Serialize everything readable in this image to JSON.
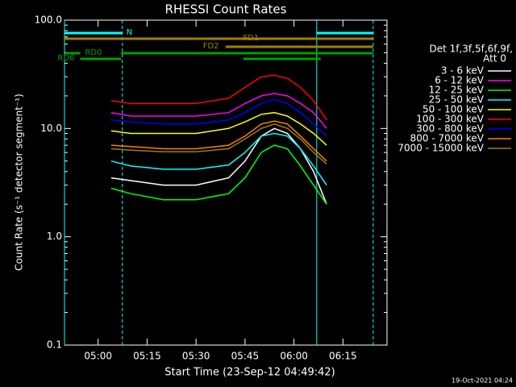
{
  "chart_data": {
    "type": "line",
    "title": "RHESSI Count Rates",
    "xlabel": "Start Time (23-Sep-12 04:49:42)",
    "ylabel": "Count Rate (s⁻¹ detector segment⁻¹)",
    "legend_title": [
      "Det 1f,3f,5f,6f,9f,",
      "Att 0"
    ],
    "footer": "19-Oct-2021 04:24",
    "log_y": true,
    "xlim": [
      "04:49:42",
      "06:28:30"
    ],
    "xticks": [
      "05:00",
      "05:15",
      "05:30",
      "05:45",
      "06:00",
      "06:15"
    ],
    "ylim": [
      0.1,
      100
    ],
    "yticks": [
      0.1,
      {
        "value": 1,
        "label": "1.0"
      },
      {
        "value": 10,
        "label": "10.0"
      },
      {
        "value": 100,
        "label": "100.0"
      }
    ],
    "x": [
      "05:04",
      "05:10",
      "05:20",
      "05:30",
      "05:40",
      "05:45",
      "05:50",
      "05:54",
      "05:58",
      "06:02",
      "06:06",
      "06:10"
    ],
    "series": [
      {
        "name": "3 - 6 keV",
        "color": "#ffffff",
        "values": [
          3.5,
          3.3,
          3.0,
          3.0,
          3.5,
          5,
          8.5,
          10,
          9,
          6.5,
          4,
          2
        ]
      },
      {
        "name": "6 - 12 keV",
        "color": "#ff00ff",
        "values": [
          14,
          13,
          13,
          13,
          14,
          17,
          20,
          21,
          20,
          17,
          14,
          10
        ]
      },
      {
        "name": "12 - 25 keV",
        "color": "#00ff00",
        "values": [
          2.8,
          2.5,
          2.2,
          2.2,
          2.5,
          3.5,
          6,
          7,
          6.5,
          4.5,
          3,
          2
        ]
      },
      {
        "name": "25 - 50 keV",
        "color": "#00ffff",
        "values": [
          5,
          4.5,
          4.2,
          4.2,
          4.6,
          6,
          8.5,
          9,
          8.5,
          6.5,
          4.5,
          3
        ]
      },
      {
        "name": "50 - 100 keV",
        "color": "#ffff00",
        "values": [
          9.5,
          9,
          9,
          9,
          10,
          11.5,
          13.5,
          14,
          13,
          11,
          9,
          7
        ]
      },
      {
        "name": "100 - 300 keV",
        "color": "#ff0000",
        "values": [
          18,
          17,
          17,
          17,
          19,
          24,
          30,
          31,
          29,
          24,
          18,
          12
        ]
      },
      {
        "name": "300 - 800 keV",
        "color": "#0000ff",
        "values": [
          12,
          11.5,
          11,
          11,
          12,
          14,
          17,
          18.5,
          17,
          14,
          11,
          8.5
        ]
      },
      {
        "name": "800 - 7000 keV",
        "color": "#ff8000",
        "values": [
          7,
          6.8,
          6.5,
          6.5,
          7,
          8.5,
          11,
          11.7,
          11,
          8.5,
          6.5,
          5
        ]
      },
      {
        "name": "7000 - 15000 keV",
        "color": "#a08000",
        "values": [
          6.5,
          6.3,
          6.1,
          6.1,
          6.5,
          8,
          10,
          11,
          10,
          8,
          6,
          4.7
        ]
      }
    ],
    "states": [
      {
        "label": "N",
        "color": "#00ffff",
        "segments": [
          [
            "04:49:42",
            "05:07:25"
          ],
          [
            "06:06:58",
            "06:24:16"
          ]
        ]
      },
      {
        "label": "FD1",
        "color": "#a08000",
        "segments": [
          [
            "04:49:42",
            "06:24:16"
          ]
        ]
      },
      {
        "label": "FD2",
        "color": "#a08000",
        "segments": [
          [
            "05:39:03",
            "06:24:16"
          ]
        ]
      },
      {
        "label": "RD0",
        "color": "#00a000",
        "segments": [
          [
            "04:50:10",
            "04:54:30"
          ],
          [
            "05:07:00",
            "06:24:16"
          ]
        ]
      },
      {
        "label": "RD6",
        "color": "#00a000",
        "segments": [
          [
            "04:54:30",
            "05:07:00"
          ],
          [
            "05:44:30",
            "06:08:10"
          ]
        ]
      }
    ],
    "vlines": [
      {
        "x": "04:49:42",
        "dash": false
      },
      {
        "x": "05:07:25",
        "dash": true
      },
      {
        "x": "06:06:58",
        "dash": false
      },
      {
        "x": "06:24:16",
        "dash": true
      }
    ]
  }
}
